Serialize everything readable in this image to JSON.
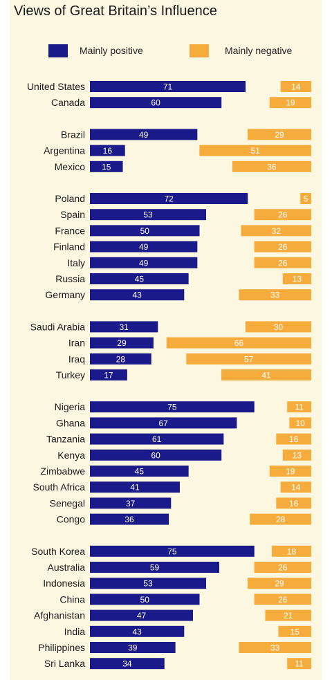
{
  "title": "Views of Great Britain’s Influence",
  "legend": {
    "positive_label": "Mainly positive",
    "negative_label": "Mainly negative"
  },
  "colors": {
    "positive": "#1b1a8a",
    "negative": "#f5ac3c",
    "background": "#fbf7e1"
  },
  "chart_data": {
    "type": "bar",
    "orientation": "horizontal",
    "title": "Views of Great Britain’s Influence",
    "series_names": [
      "Mainly positive",
      "Mainly negative"
    ],
    "groups": [
      {
        "countries": [
          {
            "name": "United States",
            "positive": 71,
            "negative": 14
          },
          {
            "name": "Canada",
            "positive": 60,
            "negative": 19
          }
        ]
      },
      {
        "countries": [
          {
            "name": "Brazil",
            "positive": 49,
            "negative": 29
          },
          {
            "name": "Argentina",
            "positive": 16,
            "negative": 51
          },
          {
            "name": "Mexico",
            "positive": 15,
            "negative": 36
          }
        ]
      },
      {
        "countries": [
          {
            "name": "Poland",
            "positive": 72,
            "negative": 5
          },
          {
            "name": "Spain",
            "positive": 53,
            "negative": 26
          },
          {
            "name": "France",
            "positive": 50,
            "negative": 32
          },
          {
            "name": "Finland",
            "positive": 49,
            "negative": 26
          },
          {
            "name": "Italy",
            "positive": 49,
            "negative": 26
          },
          {
            "name": "Russia",
            "positive": 45,
            "negative": 13
          },
          {
            "name": "Germany",
            "positive": 43,
            "negative": 33
          }
        ]
      },
      {
        "countries": [
          {
            "name": "Saudi Arabia",
            "positive": 31,
            "negative": 30
          },
          {
            "name": "Iran",
            "positive": 29,
            "negative": 66
          },
          {
            "name": "Iraq",
            "positive": 28,
            "negative": 57
          },
          {
            "name": "Turkey",
            "positive": 17,
            "negative": 41
          }
        ]
      },
      {
        "countries": [
          {
            "name": "Nigeria",
            "positive": 75,
            "negative": 11
          },
          {
            "name": "Ghana",
            "positive": 67,
            "negative": 10
          },
          {
            "name": "Tanzania",
            "positive": 61,
            "negative": 16
          },
          {
            "name": "Kenya",
            "positive": 60,
            "negative": 13
          },
          {
            "name": "Zimbabwe",
            "positive": 45,
            "negative": 19
          },
          {
            "name": "South Africa",
            "positive": 41,
            "negative": 14
          },
          {
            "name": "Senegal",
            "positive": 37,
            "negative": 16
          },
          {
            "name": "Congo",
            "positive": 36,
            "negative": 28
          }
        ]
      },
      {
        "countries": [
          {
            "name": "South Korea",
            "positive": 75,
            "negative": 18
          },
          {
            "name": "Australia",
            "positive": 59,
            "negative": 26
          },
          {
            "name": "Indonesia",
            "positive": 53,
            "negative": 29
          },
          {
            "name": "China",
            "positive": 50,
            "negative": 26
          },
          {
            "name": "Afghanistan",
            "positive": 47,
            "negative": 21
          },
          {
            "name": "India",
            "positive": 43,
            "negative": 15
          },
          {
            "name": "Philippines",
            "positive": 39,
            "negative": 33
          },
          {
            "name": "Sri Lanka",
            "positive": 34,
            "negative": 11
          }
        ]
      }
    ]
  }
}
